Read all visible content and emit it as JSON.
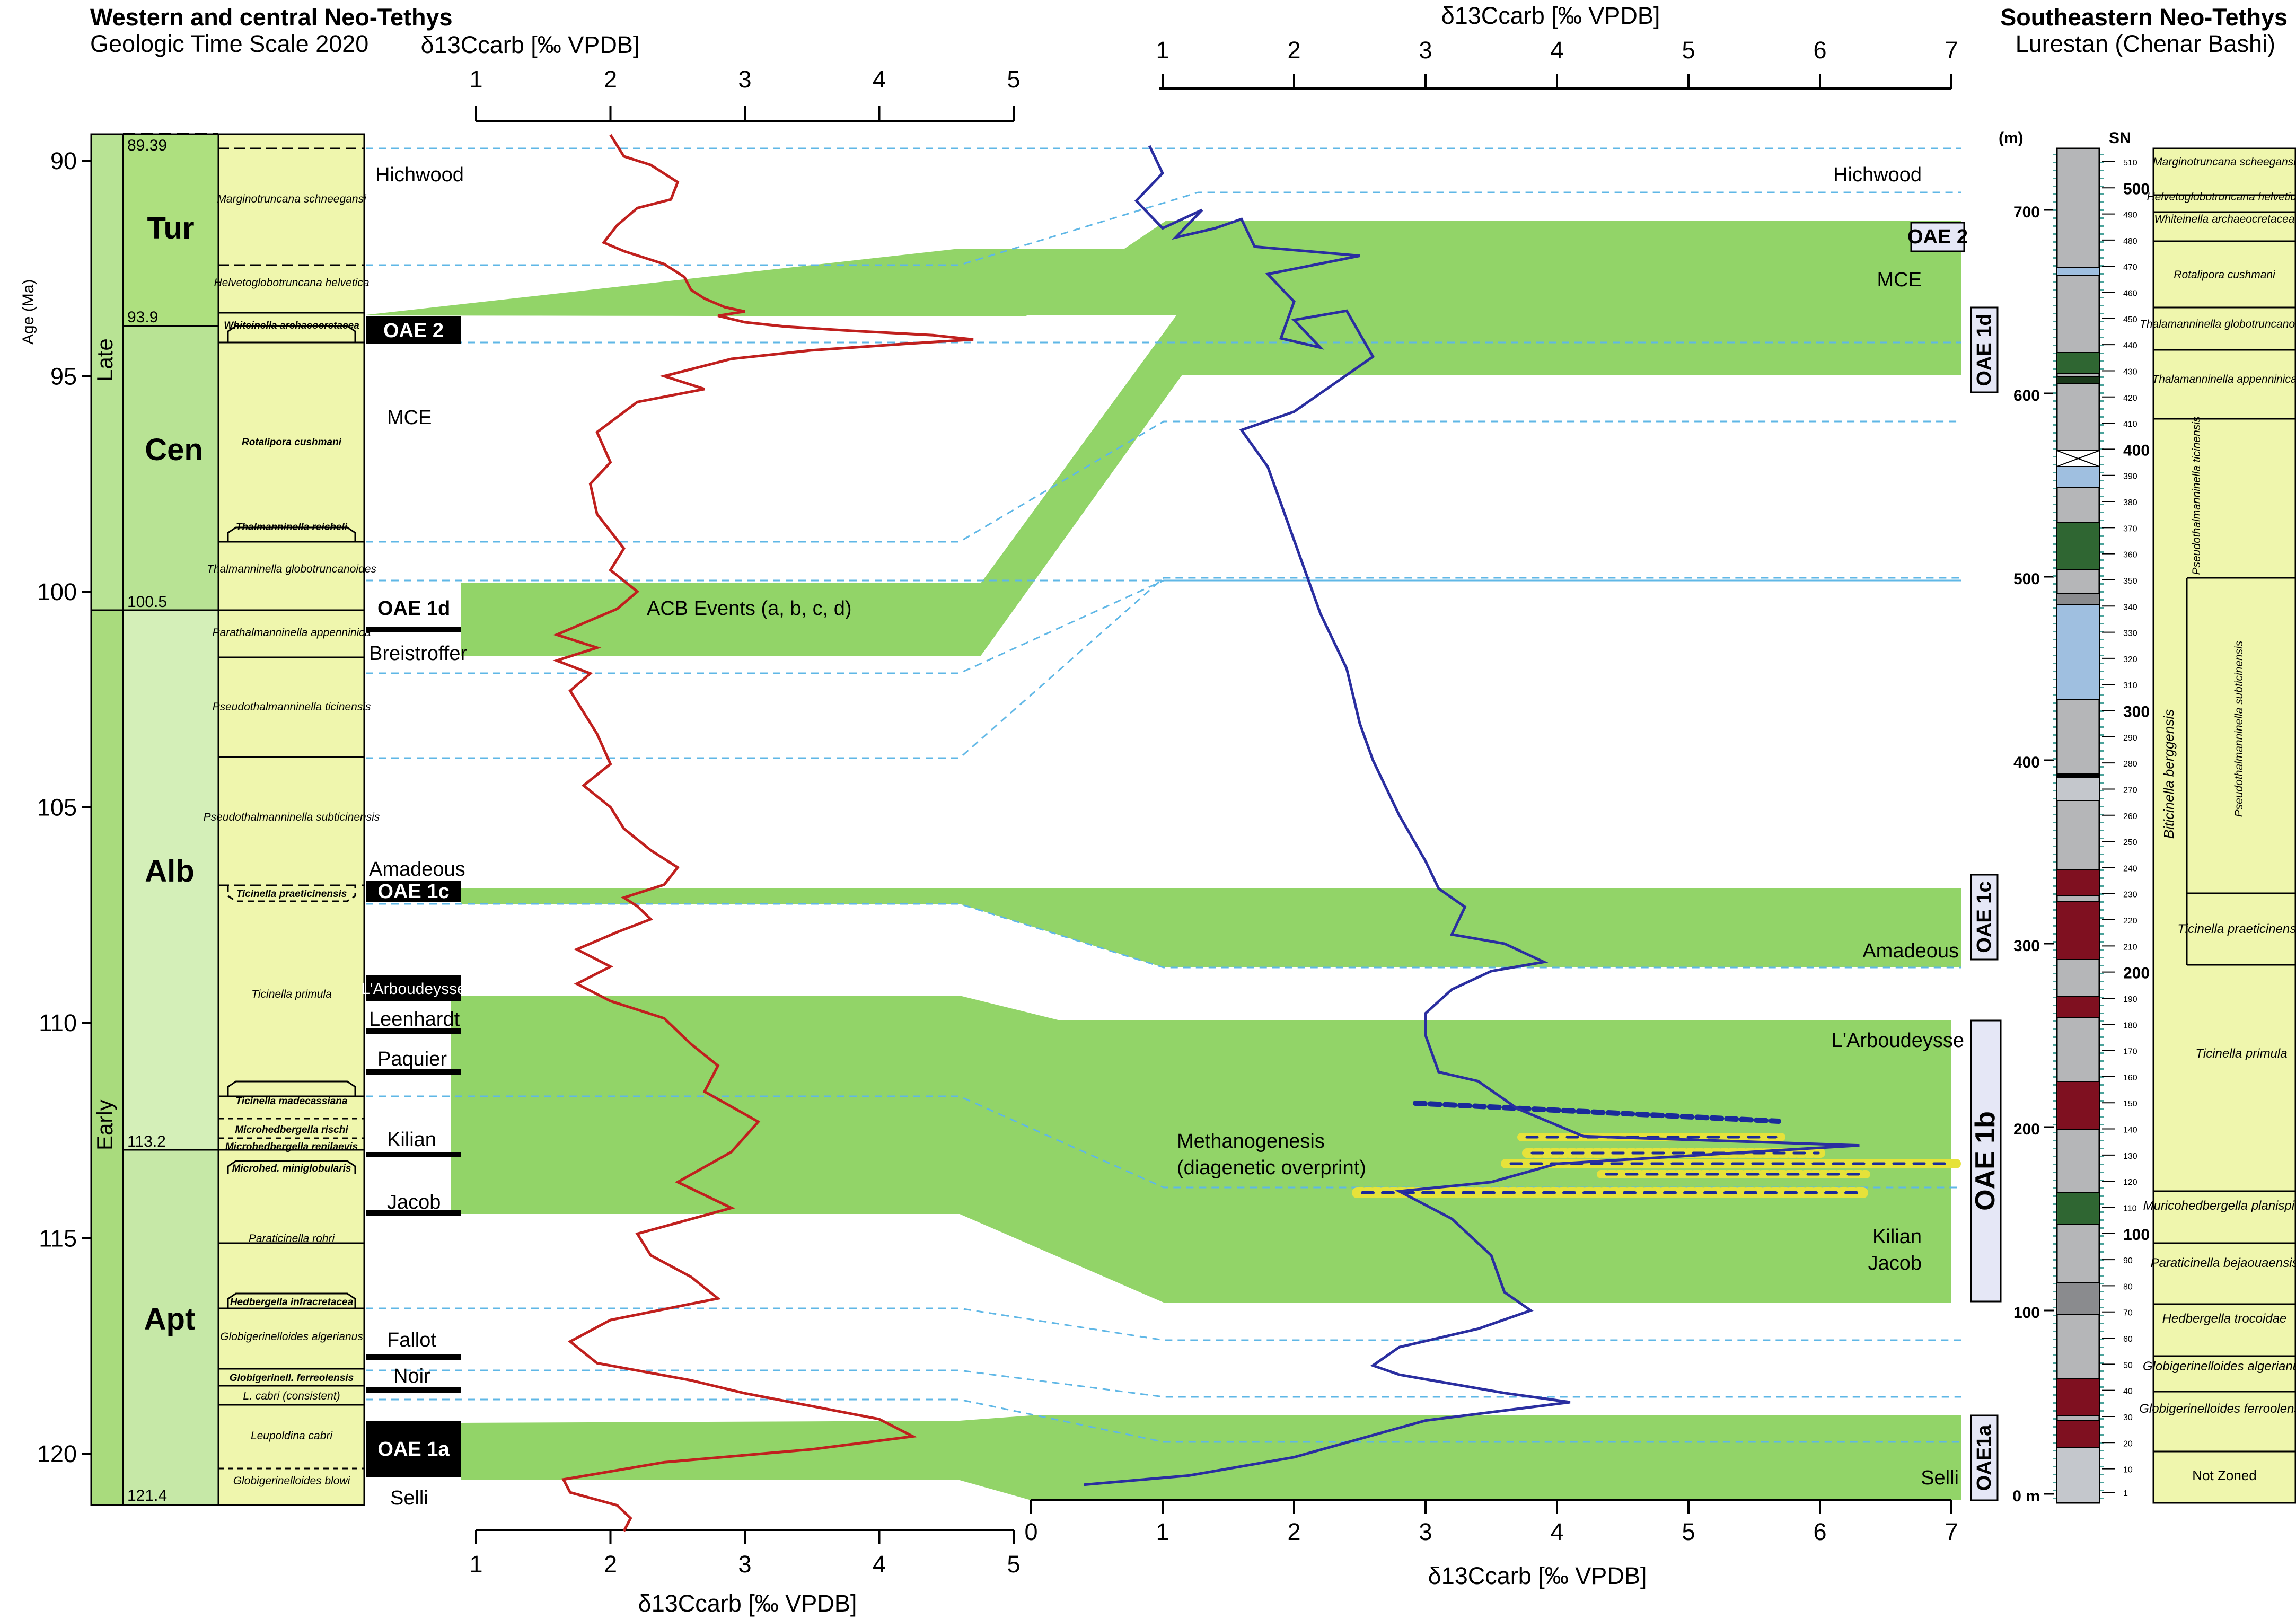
{
  "chart_data": [
    {
      "type": "line",
      "title": "Western and central Neo-Tethys",
      "subtitle": "Geologic Time Scale 2020",
      "xlabel": "δ13Ccarb [‰ VPDB]",
      "ylabel": "Age (Ma)",
      "xlim": [
        1,
        5
      ],
      "ylim": [
        89.4,
        121.5
      ],
      "xticks": [
        1,
        2,
        3,
        4,
        5
      ],
      "yticks": [
        90,
        95,
        100,
        105,
        110,
        115,
        120
      ],
      "series": [
        {
          "color": "#c0201e",
          "x": [
            2.0,
            2.1,
            2.3,
            2.4,
            2.5,
            2.45,
            2.2,
            2.05,
            1.95,
            2.1,
            2.4,
            2.55,
            2.6,
            2.7,
            2.85,
            3.0,
            2.8,
            3.0,
            3.3,
            3.8,
            4.4,
            4.7,
            4.2,
            3.5,
            2.9,
            2.4,
            2.7,
            2.2,
            1.9,
            2.0,
            1.85,
            1.9,
            2.0,
            2.1,
            2.0,
            2.2,
            2.05,
            1.75,
            1.6,
            1.9,
            1.6,
            1.85,
            1.7,
            1.8,
            1.9,
            2.0,
            1.8,
            2.0,
            2.1,
            2.3,
            2.5,
            2.4,
            2.1,
            2.2,
            2.3,
            2.05,
            1.75,
            2.0,
            1.75,
            2.0,
            2.4,
            2.6,
            2.8,
            2.7,
            3.1,
            2.9,
            2.5,
            2.9,
            2.2,
            2.3,
            2.6,
            2.8,
            2.0,
            1.7,
            1.9,
            2.6,
            3.0,
            3.5,
            4.0,
            4.25,
            3.5,
            2.4,
            1.65,
            1.7,
            2.05,
            2.15,
            2.1
          ],
          "y": [
            89.4,
            89.9,
            90.1,
            90.3,
            90.5,
            90.9,
            91.1,
            91.5,
            91.9,
            92.1,
            92.4,
            92.7,
            93.0,
            93.2,
            93.4,
            93.5,
            93.6,
            93.75,
            93.85,
            93.95,
            94.05,
            94.15,
            94.25,
            94.4,
            94.6,
            95.0,
            95.3,
            95.6,
            96.3,
            97.0,
            97.5,
            98.2,
            98.6,
            99.0,
            99.5,
            100.0,
            100.4,
            100.8,
            101.0,
            101.3,
            101.6,
            101.9,
            102.3,
            102.8,
            103.3,
            104.0,
            104.5,
            105.0,
            105.5,
            106.0,
            106.4,
            106.8,
            107.1,
            107.3,
            107.6,
            107.9,
            108.3,
            108.7,
            109.1,
            109.5,
            109.9,
            110.5,
            111.0,
            111.6,
            112.3,
            113.0,
            113.7,
            114.3,
            114.9,
            115.4,
            115.9,
            116.4,
            116.9,
            117.4,
            117.9,
            118.3,
            118.6,
            118.9,
            119.2,
            119.6,
            119.9,
            120.2,
            120.6,
            120.9,
            121.2,
            121.5,
            121.8
          ]
        }
      ],
      "stages": [
        "Tur",
        "Cen",
        "Alb",
        "Apt"
      ],
      "epochs": [
        "Late",
        "Early"
      ],
      "stage_boundaries": [
        "89.39",
        "93.9",
        "100.5",
        "113.2",
        "121.4"
      ],
      "biozones": [
        "Marginotruncana schneegansi",
        "Helvetoglobotruncana helvetica",
        "Whiteinella archaeocretacea",
        "Rotalipora cushmani",
        "Thalmanninella reicheli",
        "Thalmanninella globotruncanoides",
        "Parathalmanninella appenninica",
        "Pseudothalmanninella ticinensis",
        "Pseudothalmanninella subticinensis",
        "Ticinella praeticinensis",
        "Ticinella primula",
        "Ticinella madecassiana",
        "Microhedbergella rischi",
        "Microhedbergella renilaevis",
        "Microhed. miniglobularis",
        "Paraticinella rohri",
        "Hedbergella infracretacea",
        "Globigerinelloides algerianus",
        "Globigerinell. ferreolensis",
        "L. cabri (consistent)",
        "Leupoldina cabri",
        "Globigerinelloides blowi"
      ],
      "events": [
        "Hichwood",
        "OAE 2",
        "MCE",
        "OAE 1d",
        "Breistroffer",
        "ACB Events (a, b, c, d)",
        "Amadeous",
        "OAE 1c",
        "L'Arboudeysse",
        "Leenhardt",
        "Paquier",
        "Kilian",
        "Jacob",
        "Fallot",
        "Noir",
        "OAE 1a",
        "Selli"
      ]
    },
    {
      "type": "line",
      "title": "Southeastern Neo-Tethys",
      "subtitle": "Lurestan (Chenar Bashi)",
      "xlabel": "δ13Ccarb [‰ VPDB]",
      "ylabel": "(m)",
      "xlim": [
        0,
        7
      ],
      "ylim": [
        0,
        730
      ],
      "xticks": [
        0,
        1,
        2,
        3,
        4,
        5,
        6,
        7
      ],
      "top_xticks": [
        1,
        2,
        3,
        4,
        5,
        6,
        7
      ],
      "yticks": [
        0,
        100,
        200,
        300,
        400,
        500,
        600,
        700
      ],
      "series": [
        {
          "color": "#2a2ea0",
          "x": [
            0.9,
            1.0,
            0.8,
            1.0,
            1.3,
            1.1,
            1.4,
            1.6,
            1.7,
            2.5,
            1.8,
            2.0,
            1.9,
            2.2,
            2.0,
            2.4,
            2.6,
            2.2,
            2.0,
            1.6,
            1.8,
            1.9,
            2.0,
            2.1,
            2.2,
            2.4,
            2.5,
            2.6,
            2.8,
            3.0,
            3.1,
            3.3,
            3.2,
            3.6,
            3.9,
            3.5,
            3.2,
            3.0,
            3.0,
            3.1,
            3.4,
            3.7,
            4.2,
            6.3,
            4.0,
            3.5,
            2.8,
            3.2,
            3.5,
            3.6,
            3.8,
            3.4,
            2.8,
            2.6,
            2.8,
            3.2,
            3.6,
            4.1,
            3.0,
            2.5,
            2.0,
            1.2,
            0.4
          ],
          "y": [
            735,
            720,
            705,
            690,
            700,
            685,
            690,
            695,
            680,
            675,
            665,
            650,
            630,
            625,
            640,
            645,
            620,
            600,
            590,
            580,
            560,
            540,
            520,
            500,
            480,
            450,
            420,
            400,
            370,
            345,
            330,
            320,
            305,
            300,
            290,
            285,
            275,
            262,
            250,
            230,
            225,
            210,
            195,
            190,
            180,
            170,
            165,
            150,
            130,
            110,
            100,
            90,
            80,
            70,
            65,
            60,
            55,
            50,
            40,
            30,
            20,
            10,
            5
          ]
        }
      ],
      "sn_ticks": [
        "1",
        "10",
        "20",
        "30",
        "40",
        "50",
        "60",
        "70",
        "80",
        "90",
        "100",
        "110",
        "120",
        "130",
        "140",
        "150",
        "160",
        "170",
        "180",
        "190",
        "200",
        "210",
        "220",
        "230",
        "240",
        "250",
        "260",
        "270",
        "280",
        "290",
        "300",
        "310",
        "320",
        "330",
        "340",
        "350",
        "360",
        "370",
        "380",
        "390",
        "400",
        "410",
        "420",
        "430",
        "440",
        "450",
        "460",
        "470",
        "480",
        "490",
        "500",
        "510"
      ],
      "sn_major": [
        "100",
        "200",
        "300",
        "400",
        "500"
      ],
      "sn_label": "SN",
      "biozones": [
        "Marginotruncana scheegansi",
        "Helvetoglobotruncana helvetica",
        "Whiteinella archaeocretacea",
        "Rotalipora cushmani",
        "Thalamanninella globotruncanoids",
        "Thalamanninella appenninica",
        "Pseudothalmanninella ticinensis",
        "Biticinella berggensis",
        "Pseudothalmanninella subticinensis",
        "Ticinella praeticinensis",
        "Ticinella primula",
        "Muricohedbergella planispira",
        "Paraticinella bejaouaensis",
        "Hedbergella trocoidae",
        "Globigerinelloides algerianus",
        "Globigerinelloides ferroolensis",
        "Not Zoned"
      ],
      "events": [
        "Hichwood",
        "OAE 2",
        "MCE",
        "OAE 1d",
        "OAE 1c",
        "Amadeous",
        "L'Arboudeysse",
        "Methanogenesis",
        "(diagenetic overprint)",
        "OAE 1b",
        "Kilian",
        "Jacob",
        "OAE1a",
        "Selli"
      ]
    }
  ]
}
